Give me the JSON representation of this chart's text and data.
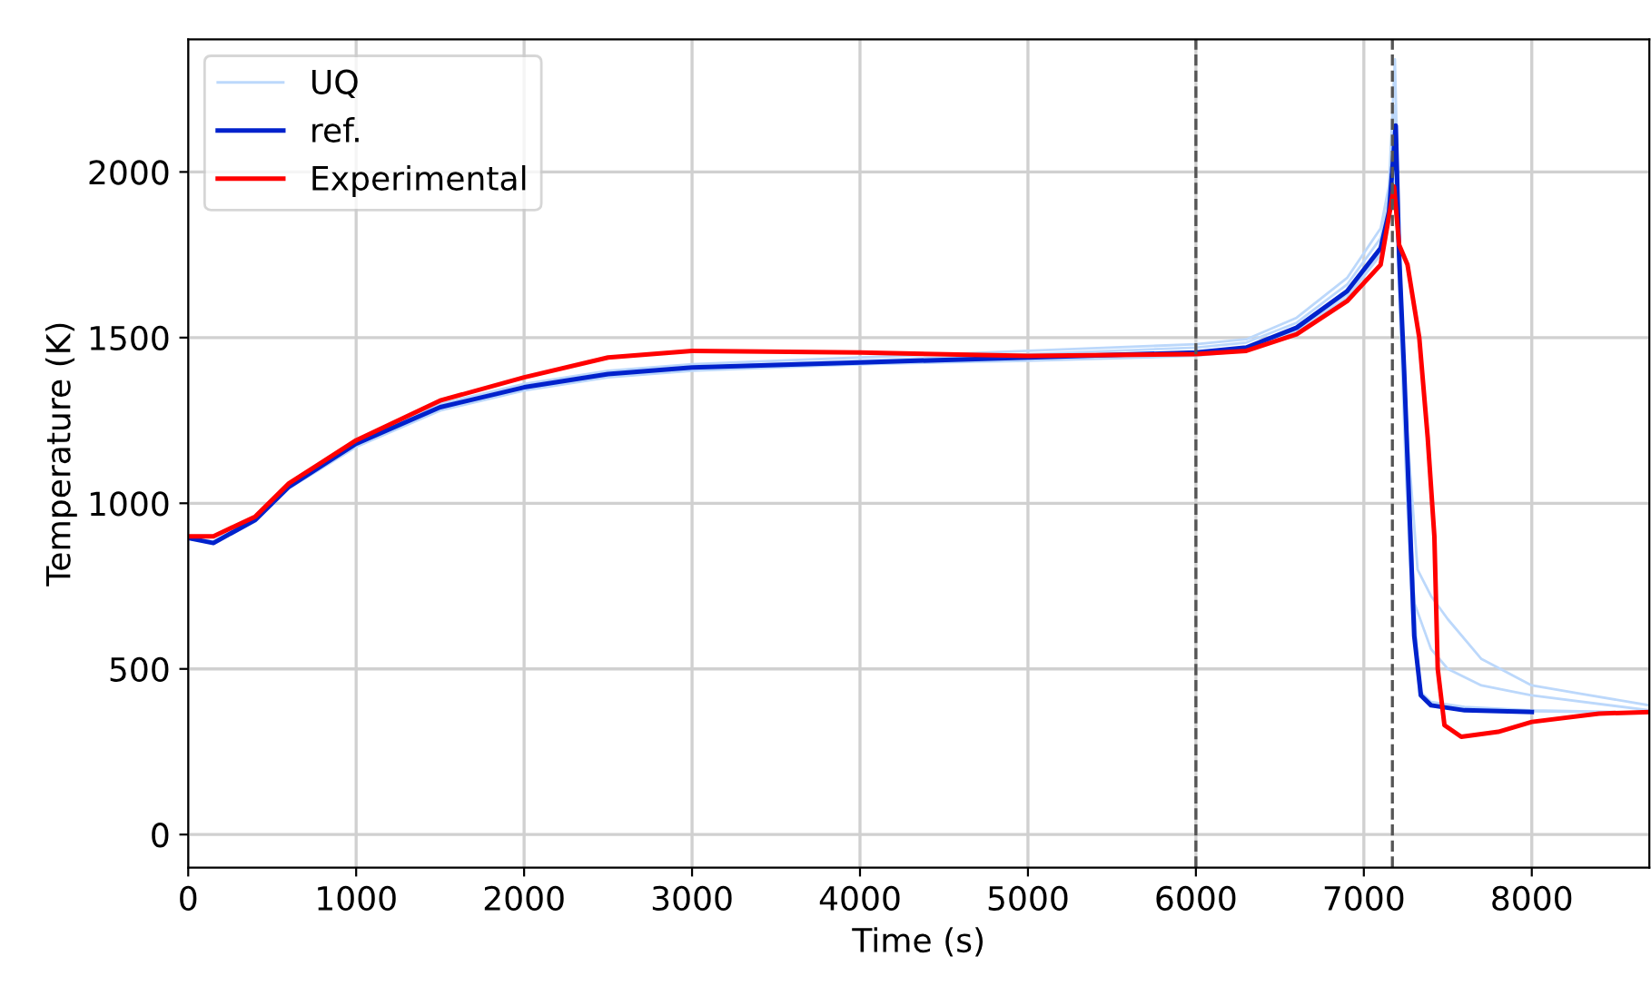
{
  "chart_data": {
    "type": "line",
    "xlabel": "Time (s)",
    "ylabel": "Temperature (K)",
    "xlim": [
      0,
      8700
    ],
    "ylim": [
      -100,
      2400
    ],
    "xticks": [
      0,
      1000,
      2000,
      3000,
      4000,
      5000,
      6000,
      7000,
      8000
    ],
    "yticks": [
      0,
      500,
      1000,
      1500,
      2000
    ],
    "grid": true,
    "legend": "top left",
    "marker": "none",
    "line_style": "solid",
    "ref_lines": [
      {
        "axis": "x",
        "value": 6000,
        "color": "#555555",
        "line_style": "dashed"
      },
      {
        "axis": "x",
        "value": 7170,
        "color": "#555555",
        "line_style": "dashed"
      }
    ],
    "series": [
      {
        "name": "UQ",
        "color": "#bcd8fb",
        "x": [
          0,
          150,
          400,
          600,
          1000,
          1500,
          2000,
          2500,
          3000,
          4000,
          5000,
          6000,
          6300,
          6600,
          6900,
          7100,
          7150,
          7185,
          7210,
          7250,
          7290,
          7330,
          7400,
          7600,
          8000,
          8700
        ],
        "values": [
          895,
          885,
          955,
          1055,
          1185,
          1300,
          1360,
          1400,
          1420,
          1440,
          1460,
          1480,
          1495,
          1560,
          1680,
          1830,
          1960,
          2340,
          1800,
          1300,
          800,
          420,
          395,
          380,
          372,
          368
        ]
      },
      {
        "color": "#bcd8fb",
        "x": [
          0,
          150,
          400,
          600,
          1000,
          1500,
          2000,
          2500,
          3000,
          4000,
          5000,
          6000,
          6300,
          6600,
          6900,
          7100,
          7150,
          7185,
          7210,
          7260,
          7320,
          7400,
          7500,
          7700,
          8000,
          8700
        ],
        "values": [
          895,
          880,
          945,
          1045,
          1170,
          1280,
          1340,
          1380,
          1400,
          1420,
          1430,
          1445,
          1460,
          1520,
          1620,
          1750,
          1850,
          2050,
          1700,
          1200,
          800,
          720,
          650,
          530,
          450,
          390
        ]
      },
      {
        "color": "#bcd8fb",
        "x": [
          0,
          150,
          400,
          600,
          1000,
          1500,
          2000,
          2500,
          3000,
          4000,
          5000,
          6000,
          6300,
          6600,
          6900,
          7100,
          7150,
          7185,
          7210,
          7250,
          7300,
          7400,
          7500,
          7700,
          8000,
          8700
        ],
        "values": [
          895,
          882,
          950,
          1050,
          1178,
          1292,
          1352,
          1392,
          1412,
          1430,
          1450,
          1470,
          1485,
          1545,
          1660,
          1800,
          1920,
          2200,
          1750,
          1250,
          700,
          560,
          500,
          450,
          420,
          375
        ]
      },
      {
        "color": "#bcd8fb",
        "x": [
          0,
          150,
          400,
          600,
          1000,
          1500,
          2000,
          2500,
          3000,
          4000,
          5000,
          6000,
          6300,
          6600,
          6900,
          7100,
          7150,
          7185,
          7210,
          7250,
          7290,
          7340,
          7400,
          7600,
          8000,
          8700
        ],
        "values": [
          895,
          880,
          948,
          1048,
          1175,
          1285,
          1345,
          1385,
          1405,
          1420,
          1435,
          1450,
          1465,
          1525,
          1630,
          1760,
          1860,
          2000,
          1650,
          1100,
          650,
          430,
          400,
          385,
          375,
          368
        ]
      },
      {
        "name": "ref.",
        "color": "#0022cc",
        "x": [
          0,
          150,
          400,
          600,
          1000,
          1500,
          2000,
          2500,
          3000,
          4000,
          5000,
          6000,
          6300,
          6600,
          6900,
          7100,
          7150,
          7190,
          7210,
          7240,
          7270,
          7300,
          7340,
          7400,
          7600,
          8000
        ],
        "values": [
          895,
          880,
          950,
          1050,
          1180,
          1290,
          1350,
          1390,
          1410,
          1425,
          1440,
          1455,
          1470,
          1530,
          1640,
          1770,
          1880,
          2140,
          1750,
          1400,
          1000,
          600,
          420,
          390,
          375,
          370
        ]
      },
      {
        "name": "Experimental",
        "color": "#ff0000",
        "x": [
          0,
          150,
          400,
          600,
          1000,
          1500,
          2000,
          2500,
          3000,
          4000,
          5000,
          6000,
          6300,
          6600,
          6900,
          7100,
          7180,
          7210,
          7260,
          7330,
          7380,
          7420,
          7440,
          7480,
          7580,
          7800,
          8000,
          8400,
          8700
        ],
        "values": [
          900,
          900,
          960,
          1060,
          1190,
          1310,
          1380,
          1440,
          1460,
          1455,
          1445,
          1450,
          1460,
          1510,
          1610,
          1720,
          1956,
          1780,
          1720,
          1500,
          1200,
          900,
          500,
          330,
          295,
          310,
          340,
          365,
          370
        ]
      }
    ]
  }
}
